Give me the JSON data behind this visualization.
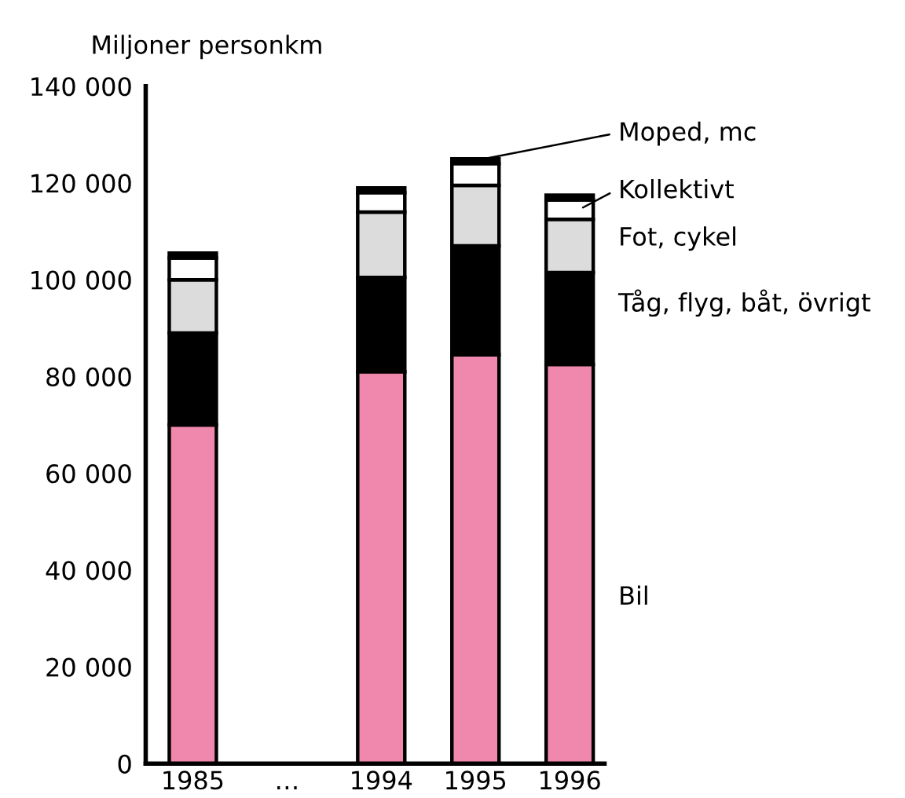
{
  "chart_data": {
    "type": "bar",
    "stacked": true,
    "ylabel": "Miljoner personkm",
    "categories": [
      "1985",
      "…",
      "1994",
      "1995",
      "1996"
    ],
    "series": [
      {
        "name": "Bil",
        "color": "#f088ae",
        "values": [
          70000,
          null,
          81000,
          84500,
          82500
        ]
      },
      {
        "name": "Tåg, flyg, båt, övrigt",
        "color": "#000000",
        "values": [
          19000,
          null,
          19500,
          22500,
          19000
        ]
      },
      {
        "name": "Fot, cykel",
        "color": "#dcdcdc",
        "values": [
          11000,
          null,
          13500,
          12500,
          11000
        ]
      },
      {
        "name": "Kollektivt",
        "color": "#ffffff",
        "values": [
          4500,
          null,
          4000,
          4500,
          4000
        ]
      },
      {
        "name": "Moped, mc",
        "color": "#000000",
        "values": [
          1000,
          null,
          1000,
          1000,
          1000
        ]
      }
    ],
    "ylim": [
      0,
      140000
    ],
    "yticks": [
      {
        "value": 0,
        "label": "0"
      },
      {
        "value": 20000,
        "label": "20 000"
      },
      {
        "value": 40000,
        "label": "40 000"
      },
      {
        "value": 60000,
        "label": "60 000"
      },
      {
        "value": 80000,
        "label": "80 000"
      },
      {
        "value": 100000,
        "label": "100 000"
      },
      {
        "value": 120000,
        "label": "120 000"
      },
      {
        "value": 140000,
        "label": "140 000"
      }
    ],
    "grid": false,
    "legend": "right"
  }
}
